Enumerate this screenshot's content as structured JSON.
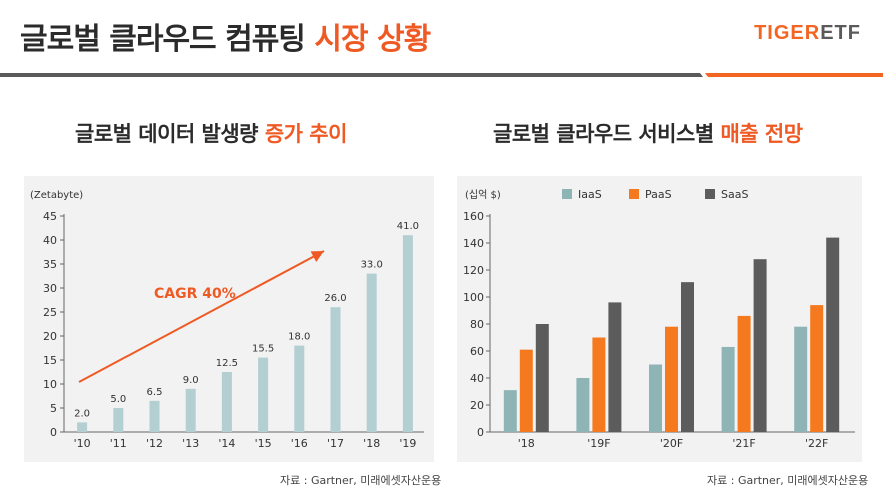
{
  "header": {
    "title_main": "글로벌 클라우드 컴퓨팅",
    "title_highlight": "시장 상황",
    "brand_a": "TIGER",
    "brand_b": "ETF"
  },
  "left": {
    "subtitle_main": "글로벌 데이터 발생량",
    "subtitle_highlight": "증가 추이",
    "source": "자료 : Gartner, 미래에셋자산운용"
  },
  "right": {
    "subtitle_main": "글로벌 클라우드 서비스별",
    "subtitle_highlight": "매출 전망",
    "source": "자료 : Gartner, 미래에셋자산운용"
  },
  "colors": {
    "accent": "#ef5a24",
    "iaas": "#8fb4b6",
    "paas": "#f57a1f",
    "saas": "#5c5c5c",
    "data_bar": "#b3cfd2",
    "panel": "#f2f2f2"
  },
  "chart_data": [
    {
      "type": "bar",
      "unit_label": "(Zetabyte)",
      "categories": [
        "'10",
        "'11",
        "'12",
        "'13",
        "'14",
        "'15",
        "'16",
        "'17",
        "'18",
        "'19"
      ],
      "values": [
        2.0,
        5.0,
        6.5,
        9.0,
        12.5,
        15.5,
        18.0,
        26.0,
        33.0,
        41.0
      ],
      "value_labels": [
        "2.0",
        "5.0",
        "6.5",
        "9.0",
        "12.5",
        "15.5",
        "18.0",
        "26.0",
        "33.0",
        "41.0"
      ],
      "ylim": [
        0,
        45
      ],
      "yticks": [
        0,
        5,
        10,
        15,
        20,
        25,
        30,
        35,
        40,
        45
      ],
      "annotation": "CAGR 40%",
      "legend": "none"
    },
    {
      "type": "bar",
      "unit_label": "(십억 $)",
      "categories": [
        "'18",
        "'19F",
        "'20F",
        "'21F",
        "'22F"
      ],
      "series": [
        {
          "name": "IaaS",
          "values": [
            31,
            40,
            50,
            63,
            78
          ]
        },
        {
          "name": "PaaS",
          "values": [
            61,
            70,
            78,
            86,
            94
          ]
        },
        {
          "name": "SaaS",
          "values": [
            80,
            96,
            111,
            128,
            144
          ]
        }
      ],
      "ylim": [
        0,
        160
      ],
      "yticks": [
        0,
        20,
        40,
        60,
        80,
        100,
        120,
        140,
        160
      ],
      "legend": "top"
    }
  ]
}
